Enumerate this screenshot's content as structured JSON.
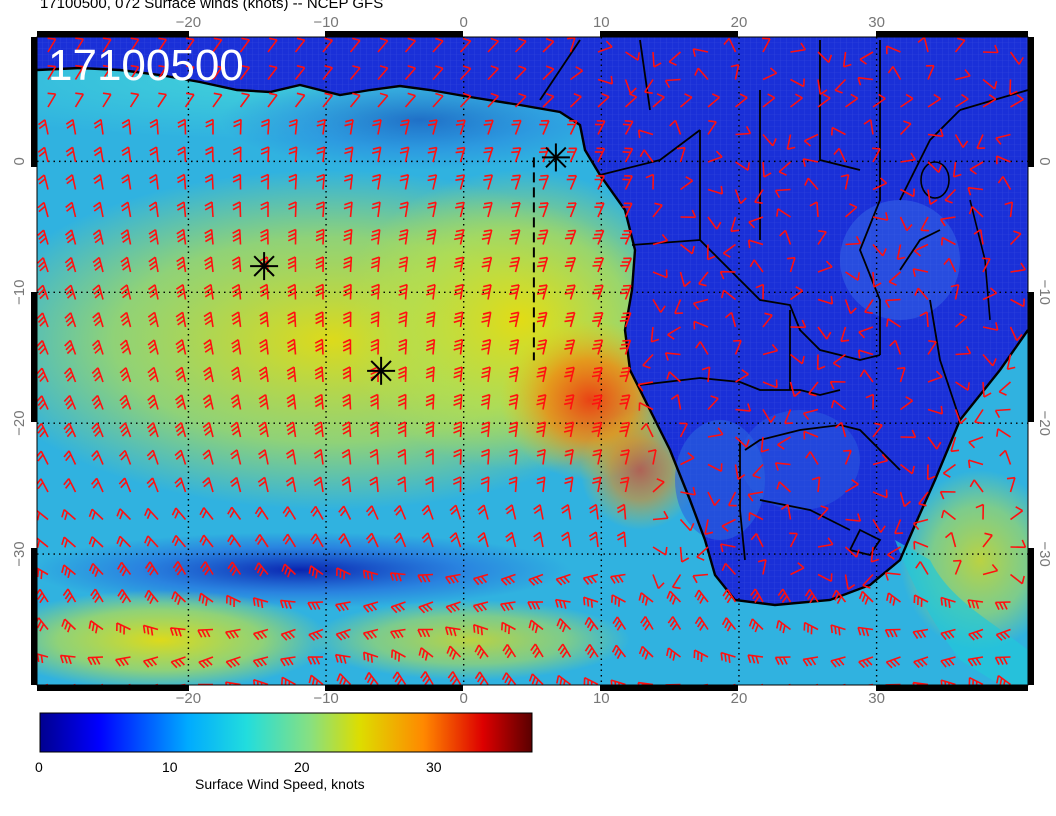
{
  "title": "17100500, 072 Surface winds (knots) -- NCEP GFS",
  "stamp": "17100500",
  "map": {
    "lon_range": [
      -31,
      41
    ],
    "lat_range": [
      -40,
      9.5
    ],
    "lon_ticks": [
      -20,
      -10,
      0,
      10,
      20,
      30
    ],
    "lat_ticks": [
      0,
      -10,
      -20,
      -30
    ],
    "lon_tick_labels": [
      "−20",
      "−10",
      "0",
      "10",
      "20",
      "30"
    ],
    "lat_tick_labels": [
      "0",
      "−10",
      "−20",
      "−30"
    ],
    "storm_markers": [
      {
        "lon": -14.5,
        "lat": -8
      },
      {
        "lon": -6,
        "lat": -16
      },
      {
        "lon": 6.7,
        "lat": 0.3
      }
    ],
    "track": [
      [
        5.1,
        0.3
      ],
      [
        5.1,
        -15.2
      ]
    ]
  },
  "colorbar": {
    "label": "Surface Wind Speed, knots",
    "ticks": [
      0,
      10,
      20,
      30
    ],
    "tick_labels": [
      "0",
      "10",
      "20",
      "30"
    ],
    "range": [
      0,
      36
    ]
  }
}
